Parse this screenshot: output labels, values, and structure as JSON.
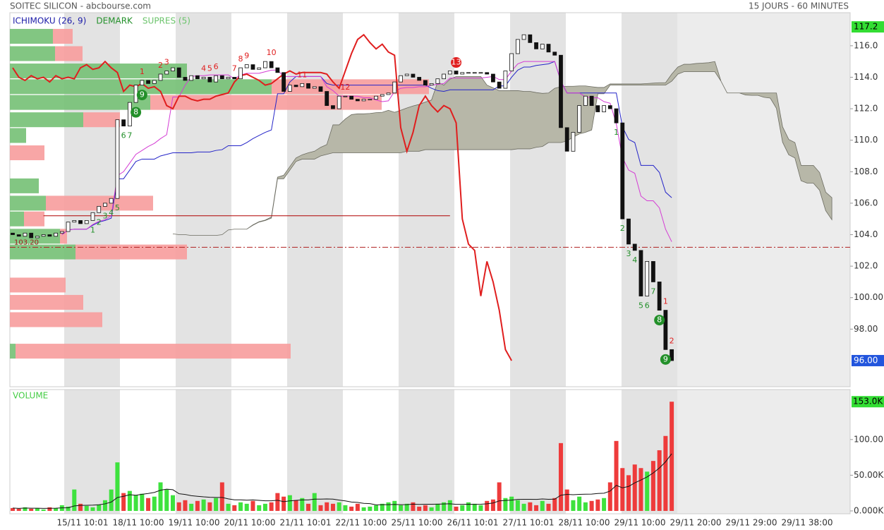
{
  "header": {
    "title": "SOITEC SILICON - abcbourse.com",
    "period": "15 JOURS - 60 MINUTES"
  },
  "chart_data": [
    {
      "type": "candlestick",
      "legend": [
        {
          "name": "ICHIMOKU (26, 9)",
          "color": "#1c1ca8"
        },
        {
          "name": "DEMARK",
          "color": "#23902a"
        },
        {
          "name": "SUPRES (5)",
          "color": "#6cc46c"
        }
      ],
      "open": [
        104.1,
        104.0,
        103.9,
        104.1,
        103.8,
        103.9,
        104.0,
        103.9,
        104.1,
        104.2,
        104.8,
        104.9,
        104.7,
        104.9,
        105.4,
        105.8,
        106.0,
        106.3,
        111.3,
        110.9,
        112.4,
        113.5,
        113.8,
        113.6,
        113.8,
        114.2,
        114.4,
        114.6,
        114.0,
        113.8,
        114.1,
        113.9,
        114.0,
        113.7,
        114.1,
        113.9,
        114.0,
        113.9,
        114.6,
        114.8,
        114.5,
        114.6,
        115.0,
        114.6,
        114.3,
        113.1,
        113.5,
        113.4,
        113.6,
        113.3,
        113.4,
        113.1,
        112.2,
        112.0,
        112.8,
        112.8,
        112.6,
        112.5,
        112.6,
        112.6,
        112.8,
        112.9,
        113.0,
        113.7,
        114.1,
        114.2,
        114.0,
        113.8,
        113.5,
        113.6,
        113.9,
        114.2,
        114.4,
        114.2,
        114.3,
        114.3,
        114.3,
        114.3,
        114.2,
        113.7,
        113.3,
        114.4,
        115.5,
        116.4,
        116.7,
        116.2,
        115.8,
        116.1,
        115.6,
        115.4,
        110.8,
        109.3,
        110.5,
        112.2,
        112.8,
        112.2,
        111.8,
        112.2,
        112.0,
        111.1,
        105.0,
        103.4,
        103.0,
        100.1,
        102.3,
        101.0,
        99.2,
        96.7
      ],
      "close": [
        104.0,
        103.9,
        104.1,
        103.8,
        103.9,
        104.0,
        103.9,
        104.1,
        104.2,
        104.8,
        104.9,
        104.7,
        104.9,
        105.4,
        105.8,
        106.0,
        106.3,
        111.3,
        110.9,
        112.4,
        113.5,
        113.8,
        113.6,
        113.8,
        114.2,
        114.4,
        114.6,
        114.0,
        113.8,
        114.1,
        113.9,
        114.0,
        113.7,
        114.1,
        113.9,
        114.0,
        113.9,
        114.6,
        114.8,
        114.5,
        114.6,
        115.0,
        114.6,
        114.3,
        113.1,
        113.5,
        113.4,
        113.6,
        113.3,
        113.4,
        113.1,
        112.2,
        112.0,
        112.8,
        112.8,
        112.6,
        112.5,
        112.6,
        112.6,
        112.8,
        112.9,
        113.0,
        113.7,
        114.1,
        114.2,
        114.0,
        113.8,
        113.5,
        113.6,
        113.9,
        114.2,
        114.4,
        114.2,
        114.3,
        114.3,
        114.3,
        114.3,
        114.2,
        113.7,
        113.3,
        114.4,
        115.5,
        116.4,
        116.7,
        116.2,
        115.8,
        116.1,
        115.6,
        115.4,
        110.8,
        109.3,
        110.5,
        112.2,
        112.8,
        112.2,
        111.8,
        112.2,
        112.0,
        111.1,
        105.0,
        103.4,
        103.0,
        100.1,
        102.3,
        101.0,
        99.2,
        96.7,
        96.0
      ],
      "ylim": [
        94.34,
        118.1
      ],
      "yticks": [
        {
          "value": 98,
          "label": "98.00"
        },
        {
          "value": 100,
          "label": "100.00"
        },
        {
          "value": 102,
          "label": "102.0"
        },
        {
          "value": 104,
          "label": "104.0"
        },
        {
          "value": 106,
          "label": "106.0"
        },
        {
          "value": 108,
          "label": "108.0"
        },
        {
          "value": 110,
          "label": "110.0"
        },
        {
          "value": 112,
          "label": "112.0"
        },
        {
          "value": 114,
          "label": "114.0"
        },
        {
          "value": 116,
          "label": "116.0"
        }
      ],
      "high_label": 117.2,
      "last_label": {
        "value": 96,
        "label": "96.00"
      },
      "ichimoku": {
        "tenkan_period": 9,
        "kijun_period": 26,
        "tenkan_color": "#d43cd4",
        "kijun_color": "#2424c8",
        "chikou_color": "#e01e1e",
        "cloud_color": "#b7b7a8"
      },
      "reference": {
        "value": 103.2,
        "label": "103.20"
      },
      "support": {
        "value": 105.2,
        "from": 5,
        "to": 71
      },
      "profile": {
        "levels": [
          116.6,
          115.5,
          114.4,
          113.4,
          112.4,
          111.3,
          110.3,
          109.2,
          107.1,
          106.0,
          105.0,
          103.9,
          102.9,
          100.8,
          99.7,
          98.6,
          96.6
        ],
        "buy": [
          61,
          64,
          251,
          371,
          199,
          104,
          23,
          0,
          41,
          51,
          20,
          71,
          93,
          0,
          0,
          0,
          8
        ],
        "sell": [
          28,
          39,
          0,
          223,
          328,
          52,
          0,
          49,
          0,
          152,
          29,
          10,
          158,
          79,
          104,
          131,
          390
        ],
        "buy_color": "#74c074",
        "sell_color": "#f79c9c"
      },
      "demark": [
        {
          "index": 13,
          "count": 1,
          "color": "#23902a",
          "circled": false
        },
        {
          "index": 14,
          "count": 2,
          "color": "#23902a",
          "circled": false
        },
        {
          "index": 15,
          "count": 3,
          "color": "#23902a",
          "circled": false
        },
        {
          "index": 16,
          "count": 4,
          "color": "#23902a",
          "circled": false
        },
        {
          "index": 17,
          "count": 5,
          "color": "#23902a",
          "circled": false
        },
        {
          "index": 18,
          "count": 6,
          "color": "#23902a",
          "circled": false
        },
        {
          "index": 19,
          "count": 7,
          "color": "#23902a",
          "circled": false
        },
        {
          "index": 20,
          "count": 8,
          "color": "#23902a",
          "circled": true
        },
        {
          "index": 21,
          "count": 9,
          "color": "#23902a",
          "circled": true
        },
        {
          "index": 21,
          "count": 1,
          "color": "#e01e1e",
          "circled": false
        },
        {
          "index": 24,
          "count": 2,
          "color": "#e01e1e",
          "circled": false
        },
        {
          "index": 25,
          "count": 3,
          "color": "#e01e1e",
          "circled": false
        },
        {
          "index": 31,
          "count": 4,
          "color": "#e01e1e",
          "circled": false
        },
        {
          "index": 32,
          "count": 5,
          "color": "#e01e1e",
          "circled": false
        },
        {
          "index": 33,
          "count": 6,
          "color": "#e01e1e",
          "circled": false
        },
        {
          "index": 36,
          "count": 7,
          "color": "#e01e1e",
          "circled": false
        },
        {
          "index": 37,
          "count": 8,
          "color": "#e01e1e",
          "circled": false
        },
        {
          "index": 38,
          "count": 9,
          "color": "#e01e1e",
          "circled": false
        },
        {
          "index": 42,
          "count": 10,
          "color": "#e01e1e",
          "circled": false
        },
        {
          "index": 47,
          "count": 11,
          "color": "#e01e1e",
          "circled": false
        },
        {
          "index": 54,
          "count": 12,
          "color": "#e01e1e",
          "circled": false
        },
        {
          "index": 72,
          "count": 13,
          "color": "#e01e1e",
          "circled": true
        },
        {
          "index": 98,
          "count": 1,
          "color": "#23902a",
          "circled": false
        },
        {
          "index": 99,
          "count": 2,
          "color": "#23902a",
          "circled": false
        },
        {
          "index": 100,
          "count": 3,
          "color": "#23902a",
          "circled": false
        },
        {
          "index": 101,
          "count": 4,
          "color": "#23902a",
          "circled": false
        },
        {
          "index": 102,
          "count": 5,
          "color": "#23902a",
          "circled": false
        },
        {
          "index": 103,
          "count": 6,
          "color": "#23902a",
          "circled": false
        },
        {
          "index": 104,
          "count": 7,
          "color": "#23902a",
          "circled": false
        },
        {
          "index": 105,
          "count": 8,
          "color": "#23902a",
          "circled": true
        },
        {
          "index": 106,
          "count": 9,
          "color": "#23902a",
          "circled": true
        },
        {
          "index": 106,
          "count": 1,
          "color": "#e01e1e",
          "circled": false
        },
        {
          "index": 107,
          "count": 2,
          "color": "#e01e1e",
          "circled": false
        }
      ]
    },
    {
      "type": "bar",
      "title": "VOLUME",
      "title_color": "#44cc44",
      "values": [
        4,
        3,
        5,
        3,
        4,
        2,
        5,
        4,
        8,
        6,
        30,
        10,
        7,
        5,
        9,
        15,
        30,
        68,
        25,
        28,
        22,
        24,
        18,
        20,
        40,
        30,
        22,
        12,
        15,
        10,
        14,
        16,
        12,
        18,
        40,
        10,
        8,
        12,
        10,
        14,
        8,
        10,
        12,
        25,
        20,
        22,
        15,
        18,
        10,
        25,
        8,
        12,
        10,
        12,
        8,
        6,
        10,
        5,
        6,
        8,
        10,
        12,
        14,
        8,
        10,
        12,
        6,
        8,
        5,
        10,
        12,
        15,
        6,
        8,
        12,
        10,
        8,
        14,
        16,
        40,
        18,
        20,
        15,
        10,
        12,
        8,
        14,
        10,
        18,
        95,
        30,
        15,
        20,
        12,
        14,
        16,
        18,
        40,
        98,
        60,
        50,
        65,
        60,
        55,
        70,
        85,
        105,
        153
      ],
      "up_color": "#3ee23e",
      "down_color": "#ee3b3b",
      "ylim": [
        -4,
        170
      ],
      "yticks": [
        {
          "value": 0,
          "label": "0.000K"
        },
        {
          "value": 50,
          "label": "50.00K"
        },
        {
          "value": 100,
          "label": "100.00K"
        }
      ],
      "last_label": {
        "value": 153,
        "label": "153.0K"
      },
      "x_labels": [
        "15/11 10:01",
        "18/11 10:00",
        "19/11 10:00",
        "20/11 10:00",
        "21/11 10:01",
        "22/11 10:00",
        "25/11 10:00",
        "26/11 10:01",
        "27/11 10:01",
        "28/11 10:00",
        "29/11 10:00",
        "29/11 20:00",
        "29/11 29:00",
        "29/11 38:00"
      ]
    }
  ]
}
